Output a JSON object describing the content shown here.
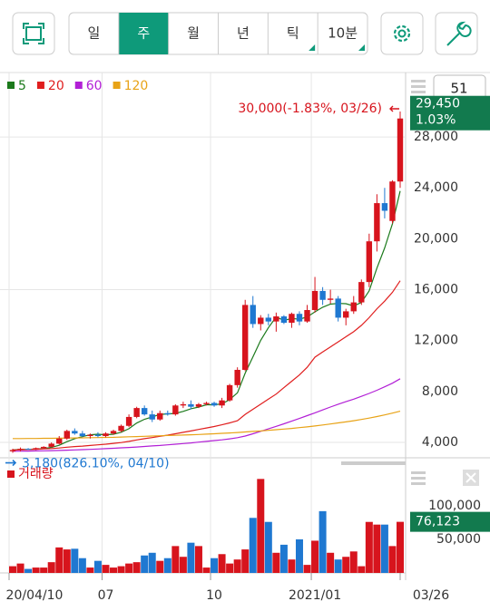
{
  "toolbar": {
    "tabs": [
      "일",
      "주",
      "월",
      "년",
      "틱",
      "10분"
    ],
    "active_tab": 1,
    "count_badge": "51"
  },
  "chart_data": [
    {
      "type": "candlestick",
      "categories": [
        "20/04/10",
        null,
        null,
        null,
        null,
        null,
        null,
        null,
        null,
        null,
        null,
        null,
        "07",
        null,
        null,
        null,
        null,
        null,
        null,
        null,
        null,
        null,
        null,
        null,
        null,
        null,
        "10",
        null,
        null,
        null,
        null,
        null,
        null,
        null,
        null,
        null,
        null,
        null,
        null,
        "2021/01",
        null,
        null,
        null,
        null,
        null,
        null,
        null,
        null,
        null,
        null,
        "03/26"
      ],
      "open": [
        3300,
        3400,
        3500,
        3450,
        3550,
        3650,
        3900,
        4300,
        4900,
        4700,
        4500,
        4600,
        4500,
        4700,
        4900,
        5300,
        6000,
        6700,
        6200,
        5800,
        6300,
        6200,
        6900,
        7000,
        6800,
        7000,
        7100,
        6900,
        7300,
        8500,
        9700,
        14800,
        13300,
        13800,
        13500,
        13900,
        13400,
        14100,
        13500,
        14400,
        15900,
        15200,
        15300,
        13800,
        14300,
        15000,
        16600,
        19800,
        22800,
        21400,
        24500
      ],
      "high": [
        3500,
        3600,
        3550,
        3600,
        3700,
        4000,
        4500,
        5000,
        5100,
        4900,
        4700,
        4800,
        4800,
        5000,
        5400,
        6200,
        6800,
        6900,
        6500,
        6500,
        6500,
        7000,
        7200,
        7300,
        7100,
        7200,
        7200,
        7500,
        8600,
        9900,
        15200,
        15500,
        14000,
        14100,
        14200,
        14000,
        14200,
        14300,
        14800,
        17000,
        16200,
        16000,
        15500,
        14500,
        15500,
        16800,
        20400,
        23500,
        24000,
        24600,
        30000
      ],
      "low": [
        3180,
        3300,
        3400,
        3400,
        3500,
        3600,
        3850,
        4200,
        4600,
        4400,
        4300,
        4400,
        4400,
        4600,
        4800,
        5200,
        5900,
        6100,
        5600,
        5700,
        6100,
        6100,
        6700,
        6600,
        6700,
        6900,
        6800,
        6700,
        7200,
        8300,
        9600,
        13000,
        12800,
        13200,
        12700,
        13300,
        13000,
        13200,
        13400,
        14200,
        14800,
        14900,
        13500,
        13200,
        14100,
        14800,
        16200,
        19000,
        21600,
        21200,
        24000
      ],
      "close": [
        3400,
        3500,
        3450,
        3550,
        3650,
        3900,
        4300,
        4900,
        4700,
        4500,
        4600,
        4500,
        4700,
        4900,
        5300,
        6000,
        6700,
        6200,
        5800,
        6300,
        6200,
        6900,
        7000,
        6800,
        7000,
        7100,
        6900,
        7300,
        8500,
        9700,
        14800,
        13300,
        13800,
        13500,
        13900,
        13400,
        14100,
        13500,
        14400,
        15900,
        15200,
        15300,
        13800,
        14300,
        15000,
        16600,
        19800,
        22800,
        22200,
        24500,
        29450
      ],
      "up_color": "#d7141d",
      "down_color": "#1f78d1",
      "series": [
        {
          "name": "5",
          "color": "#1c7a1c",
          "values": [
            3400,
            3450,
            3450,
            3480,
            3510,
            3610,
            3770,
            4060,
            4290,
            4460,
            4600,
            4640,
            4600,
            4640,
            4800,
            5080,
            5520,
            5820,
            6000,
            6200,
            6240,
            6280,
            6440,
            6640,
            6780,
            6960,
            6960,
            7020,
            7360,
            7900,
            9440,
            10720,
            12020,
            13020,
            13860,
            13580,
            13740,
            13680,
            13860,
            14260,
            14620,
            14860,
            14920,
            14900,
            14720,
            15000,
            15900,
            17700,
            19280,
            21180,
            23750
          ]
        },
        {
          "name": "20",
          "color": "#e01e1e",
          "values": [
            3400,
            3420,
            3440,
            3460,
            3490,
            3520,
            3560,
            3620,
            3670,
            3710,
            3760,
            3810,
            3860,
            3920,
            3990,
            4080,
            4190,
            4290,
            4380,
            4480,
            4570,
            4680,
            4790,
            4900,
            5020,
            5130,
            5250,
            5380,
            5530,
            5700,
            6200,
            6600,
            7000,
            7400,
            7800,
            8300,
            8800,
            9300,
            9900,
            10700,
            11100,
            11500,
            11900,
            12300,
            12700,
            13200,
            13800,
            14500,
            15100,
            15800,
            16700
          ]
        },
        {
          "name": "60",
          "color": "#b21fd6",
          "values": [
            3300,
            3310,
            3320,
            3330,
            3340,
            3350,
            3370,
            3390,
            3410,
            3430,
            3450,
            3480,
            3510,
            3540,
            3570,
            3600,
            3640,
            3680,
            3720,
            3760,
            3810,
            3860,
            3910,
            3960,
            4020,
            4080,
            4140,
            4200,
            4280,
            4370,
            4500,
            4680,
            4870,
            5060,
            5260,
            5460,
            5670,
            5880,
            6100,
            6320,
            6550,
            6780,
            7000,
            7200,
            7400,
            7620,
            7850,
            8100,
            8370,
            8650,
            9000
          ]
        },
        {
          "name": "120",
          "color": "#e8a317",
          "values": [
            4300,
            4300,
            4310,
            4310,
            4320,
            4320,
            4330,
            4340,
            4350,
            4360,
            4370,
            4380,
            4390,
            4400,
            4420,
            4440,
            4460,
            4480,
            4500,
            4520,
            4540,
            4560,
            4580,
            4600,
            4620,
            4650,
            4680,
            4710,
            4740,
            4780,
            4820,
            4860,
            4900,
            4950,
            5000,
            5050,
            5100,
            5160,
            5220,
            5290,
            5370,
            5450,
            5530,
            5610,
            5700,
            5800,
            5910,
            6030,
            6160,
            6300,
            6450
          ]
        }
      ],
      "ylim": [
        2790,
        32920
      ],
      "yticks": [
        {
          "value": 4000,
          "label": "4,000"
        },
        {
          "value": 8000,
          "label": "8,000"
        },
        {
          "value": 12000,
          "label": "12,000"
        },
        {
          "value": 16000,
          "label": "16,000"
        },
        {
          "value": 20000,
          "label": "20,000"
        },
        {
          "value": 24000,
          "label": "24,000"
        },
        {
          "value": 28000,
          "label": "28,000"
        }
      ],
      "high_annotation": "30,000(-1.83%, 03/26)",
      "low_annotation": "3,180(826.10%, 04/10)",
      "last_price_label": "29,450",
      "last_change_label": "1.03%",
      "last_box_color": "#127a4e"
    },
    {
      "type": "bar",
      "legend": "거래량",
      "color": "#d7141d",
      "values": [
        10000,
        14000,
        6000,
        8000,
        8000,
        16000,
        38000,
        35000,
        36000,
        22000,
        8000,
        18000,
        12000,
        8000,
        10000,
        14000,
        16000,
        26000,
        30000,
        18000,
        22000,
        40000,
        24000,
        45000,
        40000,
        8000,
        22000,
        28000,
        14000,
        20000,
        35000,
        82000,
        140000,
        76000,
        30000,
        42000,
        20000,
        50000,
        12000,
        48000,
        92000,
        30000,
        20000,
        24000,
        32000,
        10000,
        76000,
        72000,
        72000,
        40000,
        76123
      ],
      "last_value_label": "76,123",
      "ylim": [
        0,
        158000
      ],
      "yticks": [
        {
          "value": 50000,
          "label": "50,000"
        },
        {
          "value": 100000,
          "label": "100,000"
        }
      ]
    }
  ]
}
